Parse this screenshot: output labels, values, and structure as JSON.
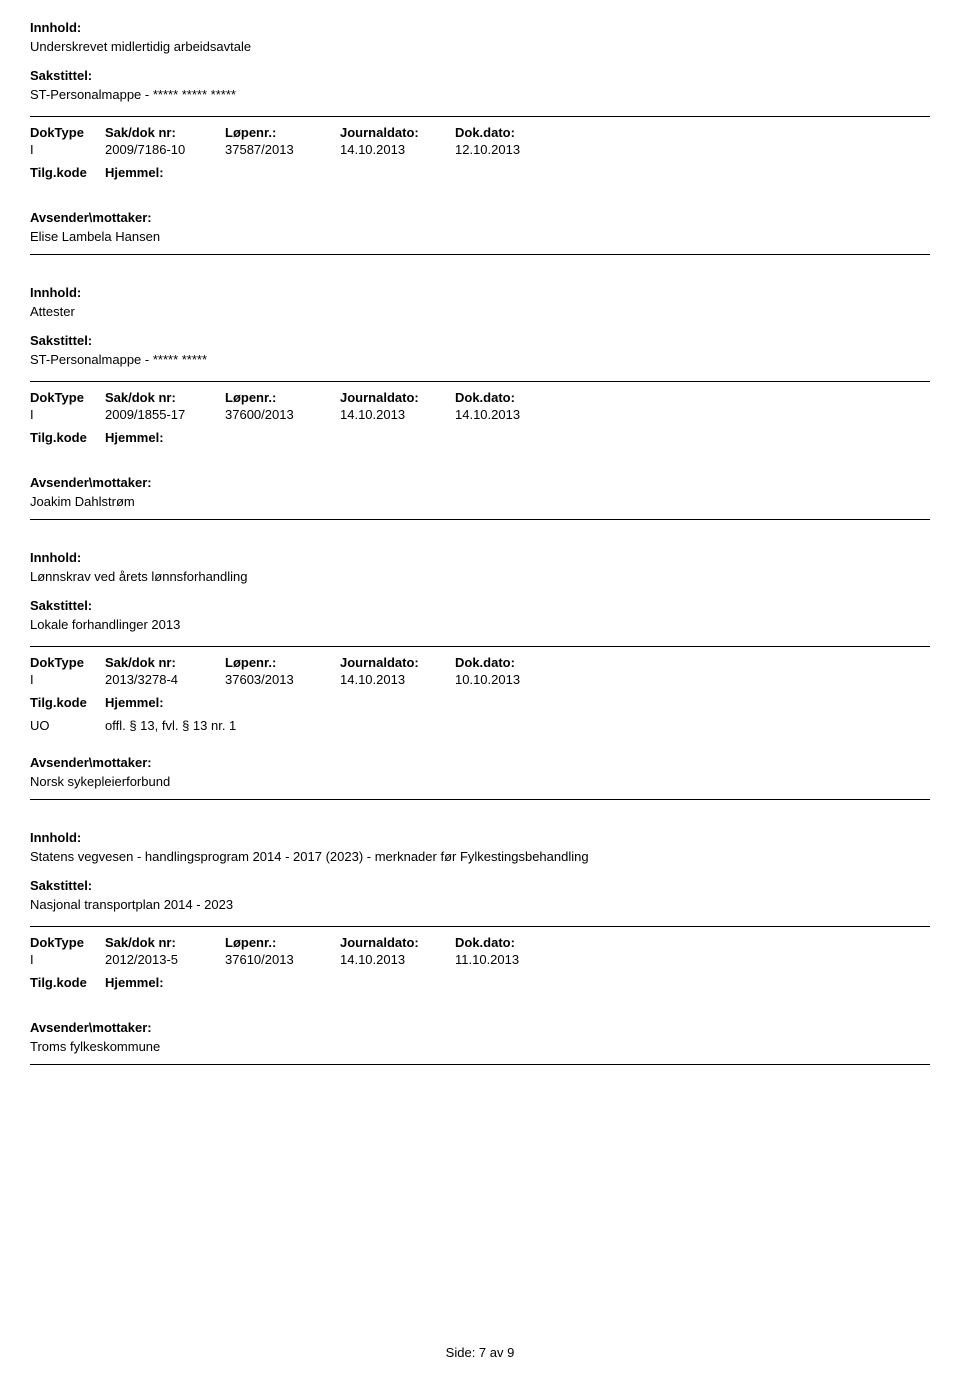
{
  "labels": {
    "innhold": "Innhold:",
    "sakstittel": "Sakstittel:",
    "doktype": "DokType",
    "sakdok": "Sak/dok nr:",
    "lopenr": "Løpenr.:",
    "journaldato": "Journaldato:",
    "dokdato": "Dok.dato:",
    "tilgkode": "Tilg.kode",
    "hjemmel": "Hjemmel:",
    "avsender": "Avsender\\mottaker:"
  },
  "entries": [
    {
      "innhold": "Underskrevet midlertidig arbeidsavtale",
      "sakstittel": "ST-Personalmappe - ***** ***** *****",
      "doktype": "I",
      "sakdok": "2009/7186-10",
      "lopenr": "37587/2013",
      "journaldato": "14.10.2013",
      "dokdato": "12.10.2013",
      "tilgkode": "",
      "hjemmel": "",
      "avsender": "Elise Lambela Hansen"
    },
    {
      "innhold": "Attester",
      "sakstittel": "ST-Personalmappe - ***** *****",
      "doktype": "I",
      "sakdok": "2009/1855-17",
      "lopenr": "37600/2013",
      "journaldato": "14.10.2013",
      "dokdato": "14.10.2013",
      "tilgkode": "",
      "hjemmel": "",
      "avsender": "Joakim Dahlstrøm"
    },
    {
      "innhold": "Lønnskrav ved årets lønnsforhandling",
      "sakstittel": "Lokale forhandlinger 2013",
      "doktype": "I",
      "sakdok": "2013/3278-4",
      "lopenr": "37603/2013",
      "journaldato": "14.10.2013",
      "dokdato": "10.10.2013",
      "tilgkode": "UO",
      "hjemmel": "offl. § 13, fvl. § 13 nr. 1",
      "avsender": "Norsk sykepleierforbund"
    },
    {
      "innhold": "Statens vegvesen - handlingsprogram 2014 - 2017 (2023) - merknader før Fylkestingsbehandling",
      "sakstittel": "Nasjonal transportplan 2014 - 2023",
      "doktype": "I",
      "sakdok": "2012/2013-5",
      "lopenr": "37610/2013",
      "journaldato": "14.10.2013",
      "dokdato": "11.10.2013",
      "tilgkode": "",
      "hjemmel": "",
      "avsender": "Troms fylkeskommune"
    }
  ],
  "footer": "Side: 7 av 9"
}
